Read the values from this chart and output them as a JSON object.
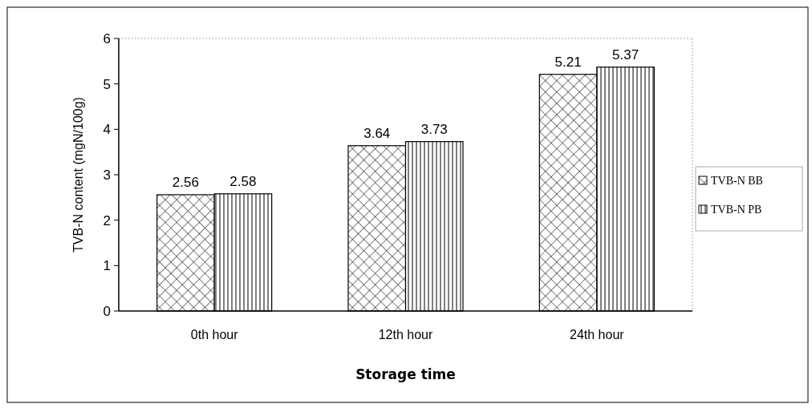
{
  "chart_data": {
    "type": "bar",
    "xlabel": "Storage time",
    "ylabel": "TVB-N content (mgN/100g)",
    "categories": [
      "0th hour",
      "12th hour",
      "24th hour"
    ],
    "series": [
      {
        "name": "TVB-N BB",
        "color": "#000000",
        "values": [
          2.56,
          3.64,
          5.21
        ]
      },
      {
        "name": "TVB-N PB",
        "color": "#000000",
        "values": [
          2.58,
          3.73,
          5.37
        ]
      }
    ],
    "ylim": [
      0,
      6
    ],
    "yticks": [
      0,
      1,
      2,
      3,
      4,
      5,
      6
    ],
    "data_labels": true,
    "legend": "right",
    "grid": false
  }
}
